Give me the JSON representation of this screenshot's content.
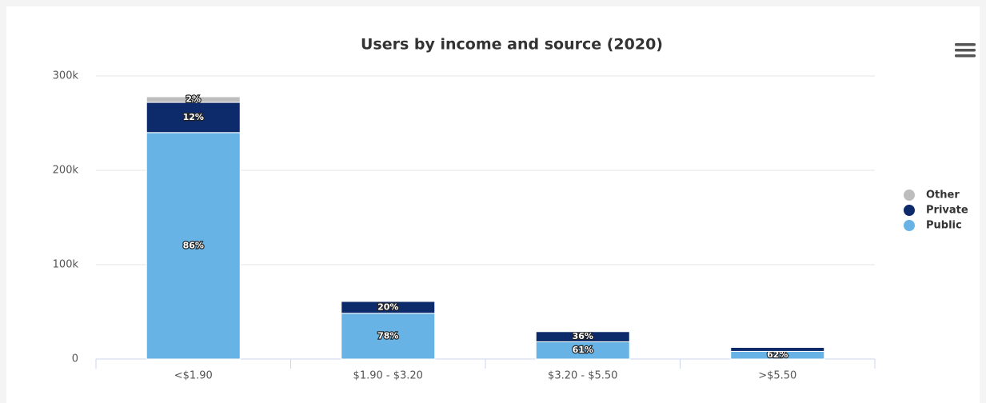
{
  "chart_data": {
    "type": "stacked_bar",
    "title": "Users by income and source (2020)",
    "categories": [
      "<$1.90",
      "$1.90 - $3.20",
      "$3.20 - $5.50",
      ">$5.50"
    ],
    "series": [
      {
        "name": "Public",
        "color": "#67b3e5",
        "values": [
          240000,
          48500,
          18300,
          8100
        ],
        "percent_labels": [
          "86%",
          "78%",
          "61%",
          "62%"
        ]
      },
      {
        "name": "Private",
        "color": "#0d2a6b",
        "values": [
          32000,
          12500,
          10800,
          4200
        ],
        "percent_labels": [
          "12%",
          "20%",
          "36%",
          null
        ]
      },
      {
        "name": "Other",
        "color": "#bdbdbd",
        "values": [
          6000,
          1000,
          900,
          700
        ],
        "percent_labels": [
          "2%",
          null,
          null,
          null
        ]
      }
    ],
    "ylim": [
      0,
      300000
    ],
    "yticks": [
      {
        "value": 0,
        "label": "0"
      },
      {
        "value": 100000,
        "label": "100k"
      },
      {
        "value": 200000,
        "label": "200k"
      },
      {
        "value": 300000,
        "label": "300k"
      }
    ],
    "grid": true,
    "legend": "right"
  }
}
